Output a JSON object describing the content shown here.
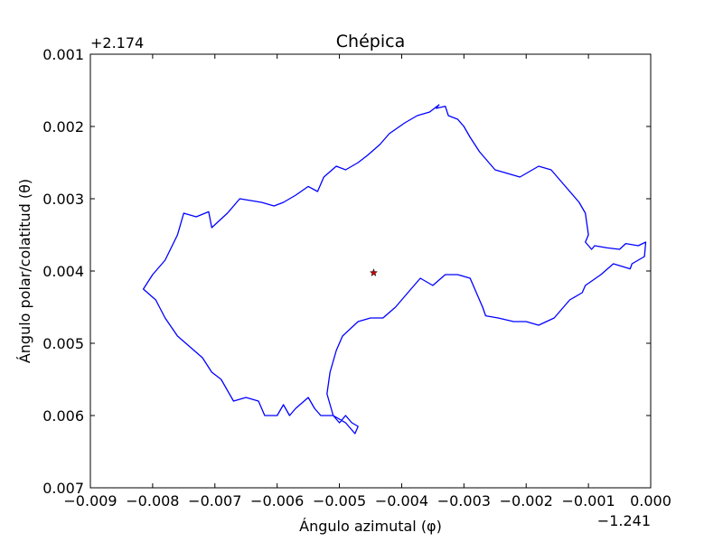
{
  "chart_data": {
    "type": "line",
    "title": "Chépica",
    "xlabel": "Ángulo azimutal (φ)",
    "ylabel": "Ángulo polar/colatitud (θ)",
    "x_offset_label": "−1.241",
    "y_offset_label": "+2.174",
    "x_offset": -1.241,
    "y_offset": 2.174,
    "xlim": [
      -0.009,
      0.0
    ],
    "ylim": [
      0.001,
      0.007
    ],
    "y_inverted": true,
    "x_ticks": [
      -0.009,
      -0.008,
      -0.007,
      -0.006,
      -0.005,
      -0.004,
      -0.003,
      -0.002,
      -0.001,
      0.0
    ],
    "x_tick_labels": [
      "−0.009",
      "−0.008",
      "−0.007",
      "−0.006",
      "−0.005",
      "−0.004",
      "−0.003",
      "−0.002",
      "−0.001",
      "0.000"
    ],
    "y_ticks": [
      0.001,
      0.002,
      0.003,
      0.004,
      0.005,
      0.006,
      0.007
    ],
    "y_tick_labels": [
      "0.001",
      "0.002",
      "0.003",
      "0.004",
      "0.005",
      "0.006",
      "0.007"
    ],
    "grid": false,
    "series": [
      {
        "color": "#0000ff",
        "x": [
          -0.00345,
          -0.0033,
          -0.00325,
          -0.0031,
          -0.003,
          -0.0029,
          -0.00275,
          -0.0025,
          -0.0023,
          -0.0021,
          -0.0018,
          -0.0016,
          -0.0014,
          -0.00115,
          -0.00105,
          -0.001,
          -0.00105,
          -0.00095,
          -0.0009,
          -0.0007,
          -0.0005,
          -0.0004,
          -0.0002,
          -8e-05,
          -0.0001,
          -0.0003,
          -0.00033,
          -0.0006,
          -0.0008,
          -0.00105,
          -0.0011,
          -0.0013,
          -0.00155,
          -0.0018,
          -0.002,
          -0.0022,
          -0.00245,
          -0.00265,
          -0.0027,
          -0.0028,
          -0.0029,
          -0.0031,
          -0.0033,
          -0.0035,
          -0.0037,
          -0.0039,
          -0.0041,
          -0.0043,
          -0.0045,
          -0.0047,
          -0.00495,
          -0.00505,
          -0.00515,
          -0.0052,
          -0.0051,
          -0.005,
          -0.0049,
          -0.0048,
          -0.0047,
          -0.00475,
          -0.0049,
          -0.0051,
          -0.0053,
          -0.0054,
          -0.0055,
          -0.0057,
          -0.0058,
          -0.0059,
          -0.006,
          -0.0062,
          -0.0063,
          -0.0065,
          -0.0067,
          -0.0069,
          -0.00705,
          -0.0072,
          -0.0074,
          -0.0076,
          -0.0078,
          -0.00795,
          -0.00815,
          -0.008,
          -0.0078,
          -0.0076,
          -0.0075,
          -0.0073,
          -0.0071,
          -0.00705,
          -0.0068,
          -0.0066,
          -0.00625,
          -0.00605,
          -0.0059,
          -0.0057,
          -0.0055,
          -0.00535,
          -0.00525,
          -0.00505,
          -0.0049,
          -0.0047,
          -0.00455,
          -0.00435,
          -0.0042,
          -0.00395,
          -0.00375,
          -0.00355,
          -0.0034,
          -0.00345
        ],
        "y": [
          0.00175,
          0.00172,
          0.00185,
          0.0019,
          0.002,
          0.00215,
          0.00235,
          0.0026,
          0.00265,
          0.0027,
          0.00255,
          0.0026,
          0.0028,
          0.00305,
          0.0032,
          0.0035,
          0.0036,
          0.0037,
          0.00365,
          0.00368,
          0.0037,
          0.00362,
          0.00365,
          0.0036,
          0.0038,
          0.0039,
          0.00397,
          0.0039,
          0.00405,
          0.0042,
          0.0043,
          0.0044,
          0.00465,
          0.00475,
          0.0047,
          0.0047,
          0.00465,
          0.00462,
          0.0045,
          0.0043,
          0.0041,
          0.00405,
          0.00405,
          0.0042,
          0.0041,
          0.0043,
          0.0045,
          0.00465,
          0.00465,
          0.0047,
          0.0049,
          0.0051,
          0.0054,
          0.0057,
          0.006,
          0.0061,
          0.006,
          0.0061,
          0.00615,
          0.00625,
          0.0061,
          0.006,
          0.006,
          0.0059,
          0.00575,
          0.0059,
          0.006,
          0.00585,
          0.006,
          0.006,
          0.0058,
          0.00575,
          0.0058,
          0.0055,
          0.0054,
          0.0052,
          0.00505,
          0.0049,
          0.00465,
          0.0044,
          0.00425,
          0.00405,
          0.00385,
          0.0035,
          0.0032,
          0.00325,
          0.00318,
          0.0034,
          0.0032,
          0.003,
          0.00305,
          0.0031,
          0.00305,
          0.00295,
          0.00283,
          0.0029,
          0.0027,
          0.00255,
          0.0026,
          0.0025,
          0.0024,
          0.00225,
          0.0021,
          0.00195,
          0.00185,
          0.0018,
          0.0017,
          0.00175
        ]
      }
    ],
    "marker": {
      "x": -0.00445,
      "y": 0.004025,
      "symbol": "star",
      "color": "#cc0000"
    }
  }
}
